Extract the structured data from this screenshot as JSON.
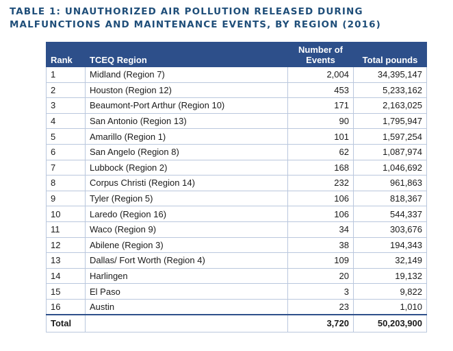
{
  "title_line1": "TABLE 1: UNAUTHORIZED AIR POLLUTION RELEASED DURING",
  "title_line2": "MALFUNCTIONS AND MAINTENANCE EVENTS, BY REGION (2016)",
  "headers": {
    "rank": "Rank",
    "region": "TCEQ Region",
    "events": "Number of Events",
    "pounds": "Total pounds"
  },
  "rows": [
    {
      "rank": "1",
      "region": "Midland (Region 7)",
      "events": "2,004",
      "pounds": "34,395,147"
    },
    {
      "rank": "2",
      "region": "Houston (Region 12)",
      "events": "453",
      "pounds": "5,233,162"
    },
    {
      "rank": "3",
      "region": "Beaumont-Port Arthur (Region 10)",
      "events": "171",
      "pounds": "2,163,025"
    },
    {
      "rank": "4",
      "region": "San Antonio (Region 13)",
      "events": "90",
      "pounds": "1,795,947"
    },
    {
      "rank": "5",
      "region": "Amarillo (Region 1)",
      "events": "101",
      "pounds": "1,597,254"
    },
    {
      "rank": "6",
      "region": "San Angelo (Region 8)",
      "events": "62",
      "pounds": "1,087,974"
    },
    {
      "rank": "7",
      "region": "Lubbock (Region 2)",
      "events": "168",
      "pounds": "1,046,692"
    },
    {
      "rank": "8",
      "region": "Corpus Christi (Region 14)",
      "events": "232",
      "pounds": "961,863"
    },
    {
      "rank": "9",
      "region": "Tyler (Region 5)",
      "events": "106",
      "pounds": "818,367"
    },
    {
      "rank": "10",
      "region": "Laredo (Region 16)",
      "events": "106",
      "pounds": "544,337"
    },
    {
      "rank": "11",
      "region": "Waco (Region 9)",
      "events": "34",
      "pounds": "303,676"
    },
    {
      "rank": "12",
      "region": "Abilene (Region 3)",
      "events": "38",
      "pounds": "194,343"
    },
    {
      "rank": "13",
      "region": "Dallas/ Fort Worth (Region 4)",
      "events": "109",
      "pounds": "32,149"
    },
    {
      "rank": "14",
      "region": "Harlingen",
      "events": "20",
      "pounds": "19,132"
    },
    {
      "rank": "15",
      "region": "El Paso",
      "events": "3",
      "pounds": "9,822"
    },
    {
      "rank": "16",
      "region": "Austin",
      "events": "23",
      "pounds": "1,010"
    }
  ],
  "total": {
    "label": "Total",
    "events": "3,720",
    "pounds": "50,203,900"
  },
  "colors": {
    "title": "#1f4e79",
    "header_bg": "#2d4f8a",
    "grid": "#b9c7dd"
  }
}
